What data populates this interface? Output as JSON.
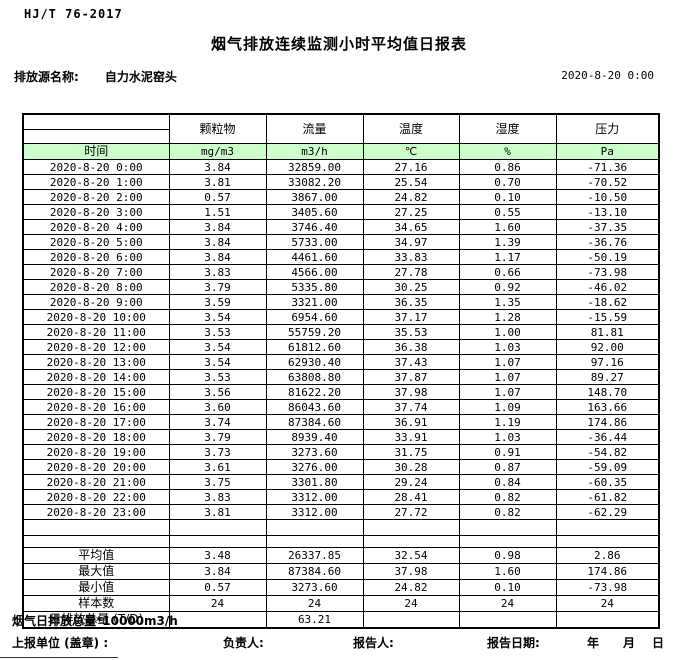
{
  "header": {
    "standard": "HJ/T 76-2017",
    "title": "烟气排放连续监测小时平均值日报表",
    "source_label": "排放源名称:",
    "source_name": "自力水泥窑头",
    "datetime": "2020-8-20 0:00"
  },
  "table": {
    "time_header": "时间",
    "columns": [
      {
        "name": "颗粒物",
        "unit": "mg/m3"
      },
      {
        "name": "流量",
        "unit": "m3/h"
      },
      {
        "name": "温度",
        "unit": "℃"
      },
      {
        "name": "湿度",
        "unit": "%"
      },
      {
        "name": "压力",
        "unit": "Pa"
      }
    ],
    "rows": [
      {
        "time": "2020-8-20 0:00",
        "values": [
          "3.84",
          "32859.00",
          "27.16",
          "0.86",
          "-71.36"
        ]
      },
      {
        "time": "2020-8-20 1:00",
        "values": [
          "3.81",
          "33082.20",
          "25.54",
          "0.70",
          "-70.52"
        ]
      },
      {
        "time": "2020-8-20 2:00",
        "values": [
          "0.57",
          "3867.00",
          "24.82",
          "0.10",
          "-10.50"
        ]
      },
      {
        "time": "2020-8-20 3:00",
        "values": [
          "1.51",
          "3405.60",
          "27.25",
          "0.55",
          "-13.10"
        ]
      },
      {
        "time": "2020-8-20 4:00",
        "values": [
          "3.84",
          "3746.40",
          "34.65",
          "1.60",
          "-37.35"
        ]
      },
      {
        "time": "2020-8-20 5:00",
        "values": [
          "3.84",
          "5733.00",
          "34.97",
          "1.39",
          "-36.76"
        ]
      },
      {
        "time": "2020-8-20 6:00",
        "values": [
          "3.84",
          "4461.60",
          "33.83",
          "1.17",
          "-50.19"
        ]
      },
      {
        "time": "2020-8-20 7:00",
        "values": [
          "3.83",
          "4566.00",
          "27.78",
          "0.66",
          "-73.98"
        ]
      },
      {
        "time": "2020-8-20 8:00",
        "values": [
          "3.79",
          "5335.80",
          "30.25",
          "0.92",
          "-46.02"
        ]
      },
      {
        "time": "2020-8-20 9:00",
        "values": [
          "3.59",
          "3321.00",
          "36.35",
          "1.35",
          "-18.62"
        ]
      },
      {
        "time": "2020-8-20 10:00",
        "values": [
          "3.54",
          "6954.60",
          "37.17",
          "1.28",
          "-15.59"
        ]
      },
      {
        "time": "2020-8-20 11:00",
        "values": [
          "3.53",
          "55759.20",
          "35.53",
          "1.00",
          "81.81"
        ]
      },
      {
        "time": "2020-8-20 12:00",
        "values": [
          "3.54",
          "61812.60",
          "36.38",
          "1.03",
          "92.00"
        ]
      },
      {
        "time": "2020-8-20 13:00",
        "values": [
          "3.54",
          "62930.40",
          "37.43",
          "1.07",
          "97.16"
        ]
      },
      {
        "time": "2020-8-20 14:00",
        "values": [
          "3.53",
          "63808.80",
          "37.87",
          "1.07",
          "89.27"
        ]
      },
      {
        "time": "2020-8-20 15:00",
        "values": [
          "3.56",
          "81622.20",
          "37.98",
          "1.07",
          "148.70"
        ]
      },
      {
        "time": "2020-8-20 16:00",
        "values": [
          "3.60",
          "86043.60",
          "37.74",
          "1.09",
          "163.66"
        ]
      },
      {
        "time": "2020-8-20 17:00",
        "values": [
          "3.74",
          "87384.60",
          "36.91",
          "1.19",
          "174.86"
        ]
      },
      {
        "time": "2020-8-20 18:00",
        "values": [
          "3.79",
          "8939.40",
          "33.91",
          "1.03",
          "-36.44"
        ]
      },
      {
        "time": "2020-8-20 19:00",
        "values": [
          "3.73",
          "3273.60",
          "31.75",
          "0.91",
          "-54.82"
        ]
      },
      {
        "time": "2020-8-20 20:00",
        "values": [
          "3.61",
          "3276.00",
          "30.28",
          "0.87",
          "-59.09"
        ]
      },
      {
        "time": "2020-8-20 21:00",
        "values": [
          "3.75",
          "3301.80",
          "29.24",
          "0.84",
          "-60.35"
        ]
      },
      {
        "time": "2020-8-20 22:00",
        "values": [
          "3.83",
          "3312.00",
          "28.41",
          "0.82",
          "-61.82"
        ]
      },
      {
        "time": "2020-8-20 23:00",
        "values": [
          "3.81",
          "3312.00",
          "27.72",
          "0.82",
          "-62.29"
        ]
      }
    ],
    "summary": [
      {
        "label": "平均值",
        "values": [
          "3.48",
          "26337.85",
          "32.54",
          "0.98",
          "2.86"
        ]
      },
      {
        "label": "最大值",
        "values": [
          "3.84",
          "87384.60",
          "37.98",
          "1.60",
          "174.86"
        ]
      },
      {
        "label": "最小值",
        "values": [
          "0.57",
          "3273.60",
          "24.82",
          "0.10",
          "-73.98"
        ]
      },
      {
        "label": "样本数",
        "values": [
          "24",
          "24",
          "24",
          "24",
          "24"
        ]
      },
      {
        "label": "日排放总量 (T/D)",
        "values": [
          "",
          "63.21",
          "",
          "",
          ""
        ]
      }
    ]
  },
  "footer": {
    "note": "烟气日排放总量*10000m3/h",
    "report_unit_label": "上报单位 (盖章) :",
    "responsible_label": "负责人:",
    "reporter_label": "报告人:",
    "report_date_label": "报告日期:",
    "year_label": "年",
    "month_label": "月",
    "day_label": "日"
  },
  "colors": {
    "header_green": "#ccffcc",
    "border": "#000000"
  }
}
